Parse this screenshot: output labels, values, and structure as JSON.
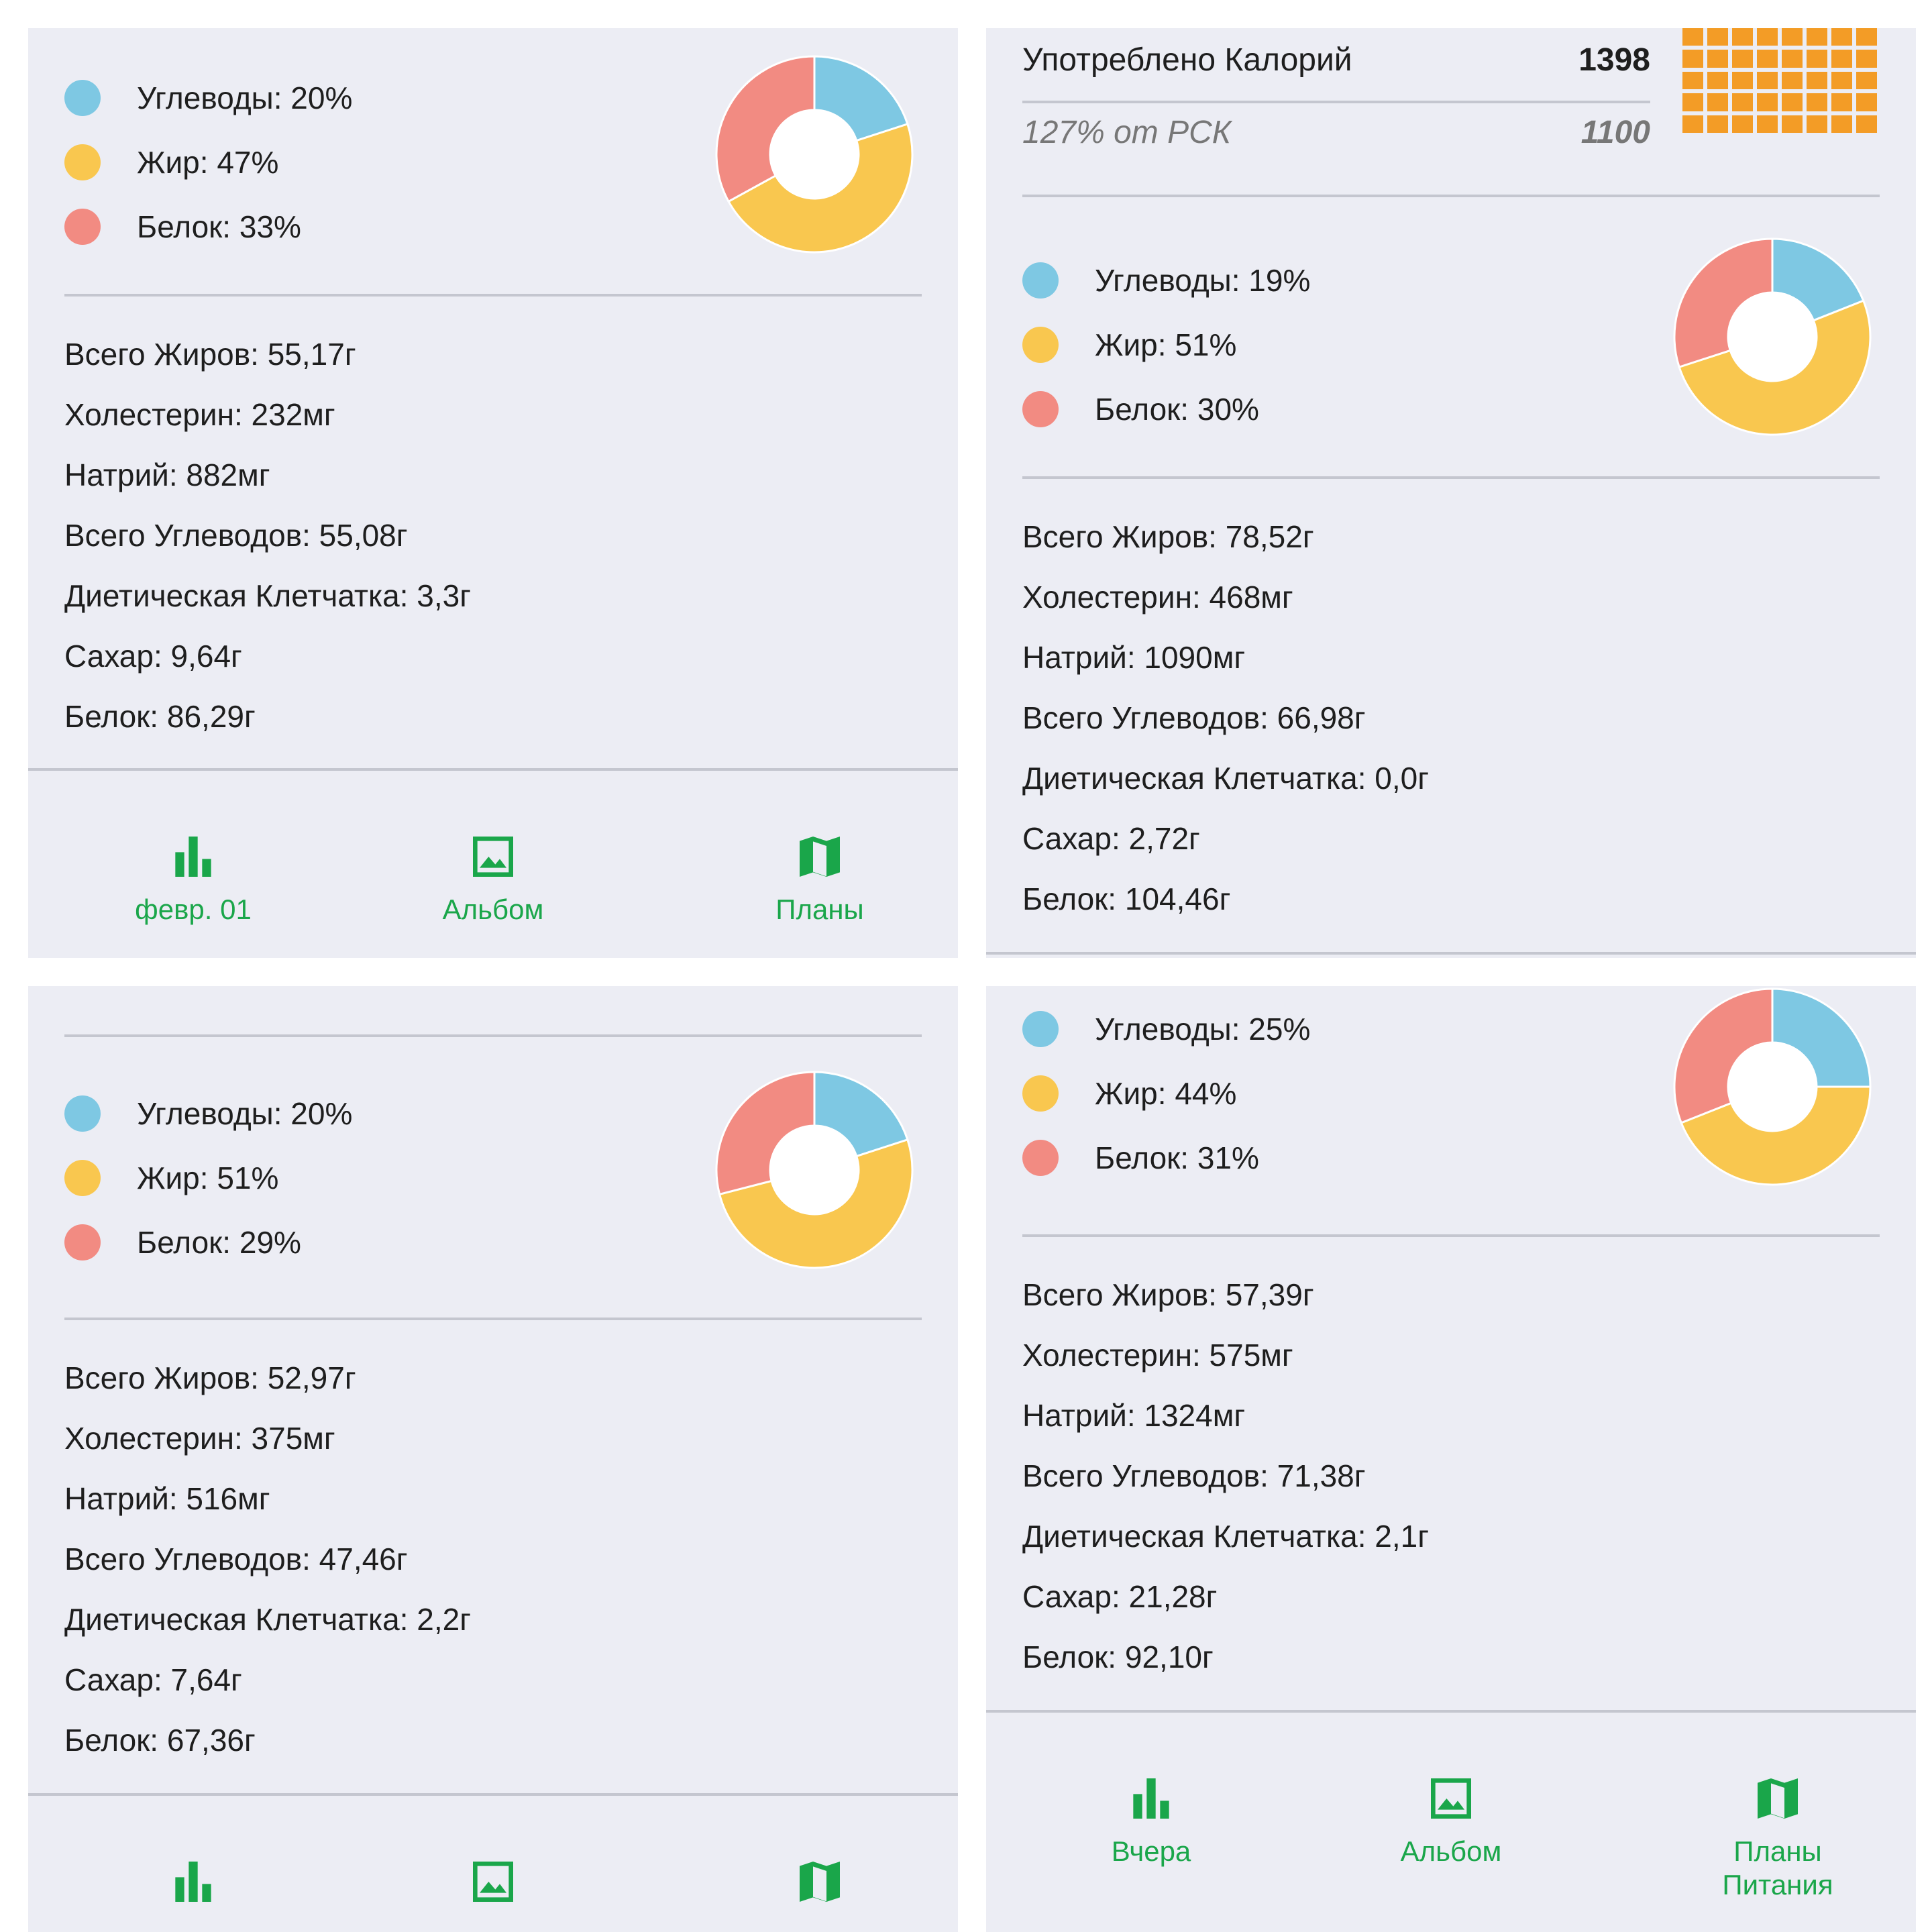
{
  "colors": {
    "carbs": "#7ec8e3",
    "fat": "#f9c74f",
    "protein": "#f28b82",
    "accent": "#1aa64a",
    "grid": "#f39c26"
  },
  "panels": [
    {
      "legend": [
        "Углеводы: 20%",
        "Жир: 47%",
        "Белок: 33%"
      ],
      "donut": [
        20,
        47,
        33
      ],
      "nutrients": [
        "Всего Жиров: 55,17г",
        "Холестерин: 232мг",
        "Натрий: 882мг",
        "Всего Углеводов: 55,08г",
        "Диетическая Клетчатка: 3,3г",
        "Сахар: 9,64г",
        "Белок: 86,29г"
      ],
      "tabs": [
        {
          "label": "февр. 01",
          "icon": "bar-chart-icon"
        },
        {
          "label": "Альбом",
          "icon": "image-icon"
        },
        {
          "label": "Планы",
          "icon": "map-icon"
        }
      ]
    },
    {
      "calories": {
        "title": "Употреблено Калорий",
        "value": "1398",
        "sub": "127% от РСК",
        "target": "1100"
      },
      "legend": [
        "Углеводы: 19%",
        "Жир: 51%",
        "Белок: 30%"
      ],
      "donut": [
        19,
        51,
        30
      ],
      "nutrients": [
        "Всего Жиров: 78,52г",
        "Холестерин: 468мг",
        "Натрий: 1090мг",
        "Всего Углеводов: 66,98г",
        "Диетическая Клетчатка: 0,0г",
        "Сахар: 2,72г",
        "Белок: 104,46г"
      ]
    },
    {
      "legend": [
        "Углеводы: 20%",
        "Жир: 51%",
        "Белок: 29%"
      ],
      "donut": [
        20,
        51,
        29
      ],
      "nutrients": [
        "Всего Жиров: 52,97г",
        "Холестерин: 375мг",
        "Натрий: 516мг",
        "Всего Углеводов: 47,46г",
        "Диетическая Клетчатка: 2,2г",
        "Сахар: 7,64г",
        "Белок: 67,36г"
      ],
      "tabs": [
        {
          "label": "",
          "icon": "bar-chart-icon"
        },
        {
          "label": "",
          "icon": "image-icon"
        },
        {
          "label": "",
          "icon": "map-icon"
        }
      ]
    },
    {
      "legend": [
        "Углеводы: 25%",
        "Жир: 44%",
        "Белок: 31%"
      ],
      "donut": [
        25,
        44,
        31
      ],
      "nutrients": [
        "Всего Жиров: 57,39г",
        "Холестерин: 575мг",
        "Натрий: 1324мг",
        "Всего Углеводов: 71,38г",
        "Диетическая Клетчатка: 2,1г",
        "Сахар: 21,28г",
        "Белок: 92,10г"
      ],
      "tabs": [
        {
          "label": "Вчера",
          "icon": "bar-chart-icon"
        },
        {
          "label": "Альбом",
          "icon": "image-icon"
        },
        {
          "label": "Планы\nПитания",
          "icon": "map-icon"
        }
      ]
    }
  ]
}
